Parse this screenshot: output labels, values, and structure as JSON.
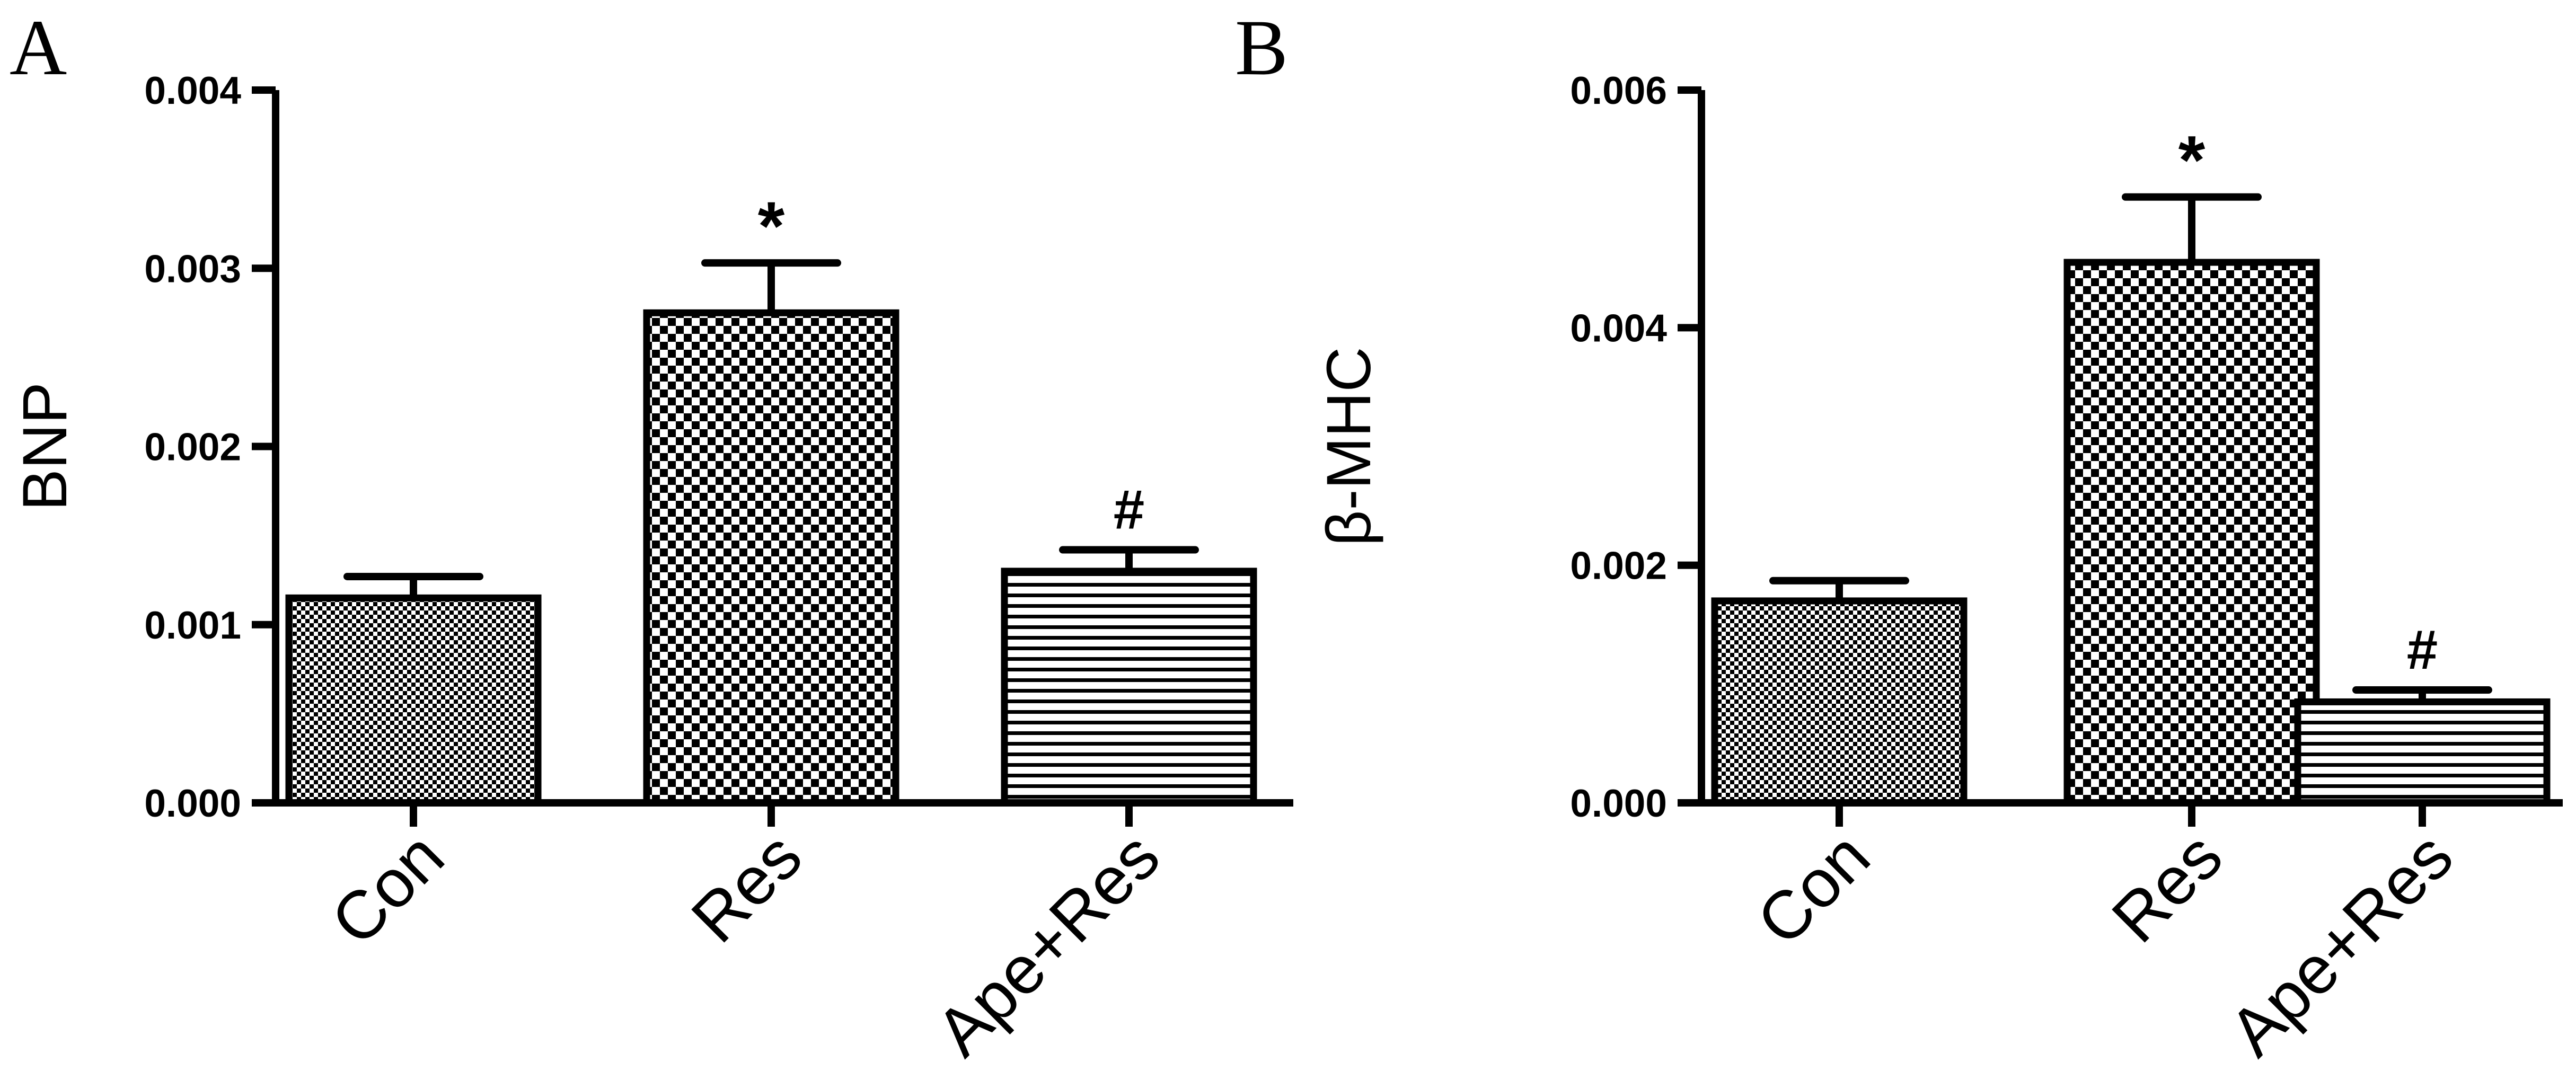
{
  "chart_data": [
    {
      "type": "bar",
      "panel_label": "A",
      "ylabel": "BNP",
      "ylim": [
        0,
        0.004
      ],
      "yticks": [
        0,
        0.001,
        0.002,
        0.003,
        0.004
      ],
      "ytick_labels": [
        "0.000",
        "0.001",
        "0.002",
        "0.003",
        "0.004"
      ],
      "categories": [
        "Con",
        "Res",
        "Ape+Res"
      ],
      "values": [
        0.00115,
        0.00275,
        0.0013
      ],
      "errors": [
        0.00012,
        0.00028,
        0.00012
      ],
      "patterns": [
        "fine-check",
        "coarse-check",
        "horizontal-lines"
      ],
      "annotations": [
        "",
        "*",
        "#"
      ]
    },
    {
      "type": "bar",
      "panel_label": "B",
      "ylabel": "β-MHC",
      "ylim": [
        0,
        0.006
      ],
      "yticks": [
        0,
        0.002,
        0.004,
        0.006
      ],
      "ytick_labels": [
        "0.000",
        "0.002",
        "0.004",
        "0.006"
      ],
      "categories": [
        "Con",
        "Res",
        "Ape+Res"
      ],
      "values": [
        0.0017,
        0.00455,
        0.00085
      ],
      "errors": [
        0.00017,
        0.00055,
        0.0001
      ],
      "patterns": [
        "fine-check",
        "coarse-check",
        "horizontal-lines"
      ],
      "annotations": [
        "",
        "*",
        "#"
      ]
    }
  ]
}
